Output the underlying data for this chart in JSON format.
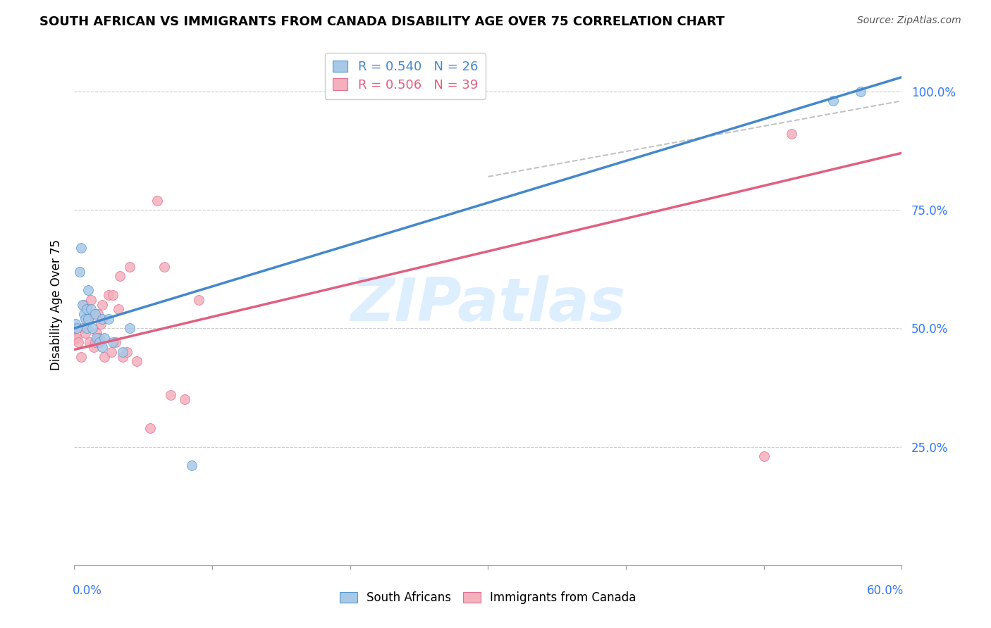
{
  "title": "SOUTH AFRICAN VS IMMIGRANTS FROM CANADA DISABILITY AGE OVER 75 CORRELATION CHART",
  "source": "Source: ZipAtlas.com",
  "ylabel": "Disability Age Over 75",
  "legend_blue_R": "0.540",
  "legend_blue_N": "26",
  "legend_pink_R": "0.506",
  "legend_pink_N": "39",
  "blue_fill": "#a8c8e8",
  "blue_edge": "#5599cc",
  "pink_fill": "#f4b0bc",
  "pink_edge": "#e07090",
  "blue_line": "#4488cc",
  "pink_line": "#e06080",
  "watermark_text": "ZIPatlas",
  "watermark_color": "#ddeeff",
  "blue_points_x": [
    0.001,
    0.002,
    0.004,
    0.005,
    0.006,
    0.007,
    0.008,
    0.009,
    0.009,
    0.01,
    0.01,
    0.012,
    0.013,
    0.015,
    0.016,
    0.018,
    0.02,
    0.02,
    0.022,
    0.025,
    0.028,
    0.035,
    0.04,
    0.085,
    0.55,
    0.57
  ],
  "blue_points_y": [
    0.51,
    0.5,
    0.62,
    0.67,
    0.55,
    0.53,
    0.52,
    0.54,
    0.5,
    0.58,
    0.52,
    0.54,
    0.5,
    0.53,
    0.48,
    0.47,
    0.52,
    0.46,
    0.48,
    0.52,
    0.47,
    0.45,
    0.5,
    0.21,
    0.98,
    1.0
  ],
  "pink_points_x": [
    0.001,
    0.001,
    0.002,
    0.003,
    0.005,
    0.006,
    0.007,
    0.008,
    0.009,
    0.01,
    0.011,
    0.012,
    0.013,
    0.014,
    0.015,
    0.016,
    0.017,
    0.018,
    0.019,
    0.02,
    0.022,
    0.025,
    0.027,
    0.028,
    0.03,
    0.032,
    0.033,
    0.035,
    0.038,
    0.04,
    0.045,
    0.055,
    0.06,
    0.065,
    0.07,
    0.08,
    0.09,
    0.5,
    0.52
  ],
  "pink_points_y": [
    0.5,
    0.48,
    0.48,
    0.47,
    0.44,
    0.5,
    0.55,
    0.49,
    0.52,
    0.52,
    0.47,
    0.56,
    0.53,
    0.46,
    0.47,
    0.49,
    0.53,
    0.48,
    0.51,
    0.55,
    0.44,
    0.57,
    0.45,
    0.57,
    0.47,
    0.54,
    0.61,
    0.44,
    0.45,
    0.63,
    0.43,
    0.29,
    0.77,
    0.63,
    0.36,
    0.35,
    0.56,
    0.23,
    0.91
  ],
  "blue_line_x0": 0.0,
  "blue_line_y0": 0.5,
  "blue_line_x1": 0.6,
  "blue_line_y1": 1.03,
  "pink_line_x0": 0.0,
  "pink_line_y0": 0.455,
  "pink_line_x1": 0.6,
  "pink_line_y1": 0.87,
  "xlim": [
    0.0,
    0.6
  ],
  "ylim": [
    0.0,
    1.1
  ],
  "xticks": [
    0.0,
    0.1,
    0.2,
    0.3,
    0.4,
    0.5,
    0.6
  ],
  "yticks": [
    0.25,
    0.5,
    0.75,
    1.0
  ],
  "title_fontsize": 13,
  "source_fontsize": 10,
  "tick_label_fontsize": 12,
  "ylabel_fontsize": 12,
  "legend_fontsize": 13
}
